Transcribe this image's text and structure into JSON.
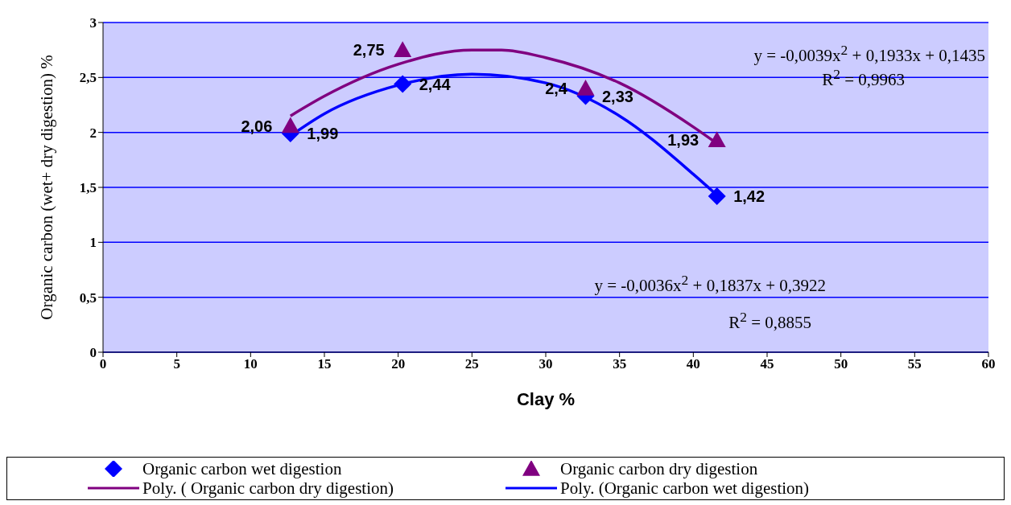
{
  "chart_data": {
    "type": "scatter",
    "xlabel": "Clay %",
    "ylabel": "Organic carbon (wet+ dry digestion) %",
    "xlim": [
      0,
      60
    ],
    "xticks": [
      0,
      5,
      10,
      15,
      20,
      25,
      30,
      35,
      40,
      45,
      50,
      55,
      60
    ],
    "ylim": [
      0,
      3
    ],
    "yticks": [
      0,
      {
        "value": 0.5,
        "label": "0,5"
      },
      1,
      {
        "value": 1.5,
        "label": "1,5"
      },
      2,
      {
        "value": 2.5,
        "label": "2,5"
      },
      3
    ],
    "grid": "y",
    "legend": "bottom",
    "series": [
      {
        "name": "Organic carbon wet digestion",
        "marker": "diamond",
        "color": "#0000ff",
        "x": [
          12.7,
          20.3,
          32.7,
          41.6
        ],
        "values": [
          1.99,
          2.44,
          2.33,
          1.42
        ],
        "value_labels": [
          "1,99",
          "2,44",
          "2,33",
          "1,42"
        ]
      },
      {
        "name": "Organic carbon dry digestion",
        "marker": "triangle",
        "color": "#800080",
        "x": [
          12.7,
          20.3,
          32.7,
          41.6
        ],
        "values": [
          2.06,
          2.75,
          2.4,
          1.93
        ],
        "value_labels": [
          "2,06",
          "2,75",
          "2,4",
          "1,93"
        ]
      },
      {
        "name": "Poly. ( Organic carbon dry digestion)",
        "type": "line",
        "marker": "none",
        "color": "#800080",
        "x": [
          12.7,
          15,
          20,
          25,
          27,
          30,
          35,
          40,
          41.6
        ],
        "values": [
          2.15,
          2.33,
          2.62,
          2.75,
          2.75,
          2.68,
          2.45,
          2.05,
          1.9
        ]
      },
      {
        "name": "Poly. (Organic carbon wet digestion)",
        "type": "line",
        "marker": "none",
        "color": "#0000ff",
        "x": [
          12.7,
          15,
          20,
          25,
          30,
          35,
          40,
          41.6
        ],
        "values": [
          1.97,
          2.17,
          2.43,
          2.53,
          2.45,
          2.15,
          1.62,
          1.43
        ]
      }
    ],
    "annotations": [
      "y = -0,0039x$^{2}$ + 0,1933x + 0,1435",
      "R$^{2}$ = 0,9963",
      "y = -0,0036x$^{2}$ + 0,1837x + 0,3922",
      "R$^{2}$ = 0,8855"
    ]
  }
}
